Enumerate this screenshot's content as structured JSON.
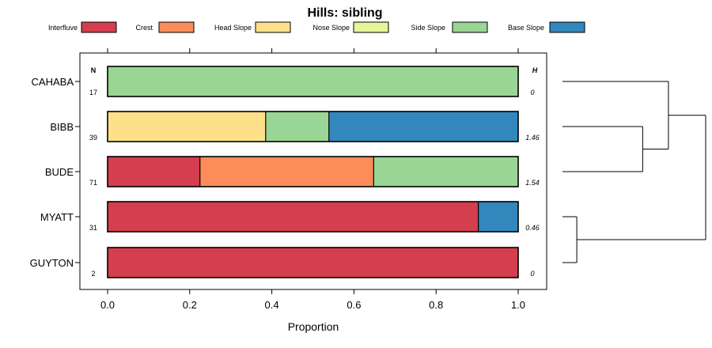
{
  "chart_data": {
    "type": "bar",
    "subtype": "stacked-horizontal-proportion",
    "title": "Hills: sibling",
    "xlabel": "Proportion",
    "ylabel": "",
    "xlim": [
      0,
      1
    ],
    "xticks": [
      "0.0",
      "0.2",
      "0.4",
      "0.6",
      "0.8",
      "1.0"
    ],
    "legend": [
      {
        "name": "Interfluve",
        "color": "#D53E4F"
      },
      {
        "name": "Crest",
        "color": "#FC8D59"
      },
      {
        "name": "Head Slope",
        "color": "#FEE08B"
      },
      {
        "name": "Nose Slope",
        "color": "#E6F598"
      },
      {
        "name": "Side Slope",
        "color": "#99D594"
      },
      {
        "name": "Base Slope",
        "color": "#3288BD"
      }
    ],
    "n_header": "N",
    "h_header": "H",
    "categories": [
      "CAHABA",
      "BIBB",
      "BUDE",
      "MYATT",
      "GUYTON"
    ],
    "n_values": [
      "17",
      "39",
      "71",
      "31",
      "2"
    ],
    "h_values": [
      "0",
      "1.46",
      "1.54",
      "0.46",
      "0"
    ],
    "series": [
      {
        "name": "Interfluve",
        "values": [
          0,
          0,
          0.225,
          0.903,
          1.0
        ]
      },
      {
        "name": "Crest",
        "values": [
          0,
          0,
          0.423,
          0,
          0
        ]
      },
      {
        "name": "Head Slope",
        "values": [
          0,
          0.385,
          0,
          0,
          0
        ]
      },
      {
        "name": "Nose Slope",
        "values": [
          0,
          0,
          0,
          0,
          0
        ]
      },
      {
        "name": "Side Slope",
        "values": [
          1.0,
          0.154,
          0.352,
          0,
          0
        ]
      },
      {
        "name": "Base Slope",
        "values": [
          0,
          0.461,
          0,
          0.097,
          0
        ]
      }
    ],
    "dendrogram": {
      "type": "hierarchical-clustering",
      "merges": [
        {
          "members": [
            "MYATT",
            "GUYTON"
          ],
          "height": 0.1
        },
        {
          "members": [
            "BIBB",
            "BUDE"
          ],
          "height": 0.56
        },
        {
          "members": [
            "CAHABA",
            "BIBB",
            "BUDE"
          ],
          "height": 0.74
        },
        {
          "members": [
            "CAHABA",
            "BIBB",
            "BUDE",
            "MYATT",
            "GUYTON"
          ],
          "height": 1.0
        }
      ]
    }
  }
}
